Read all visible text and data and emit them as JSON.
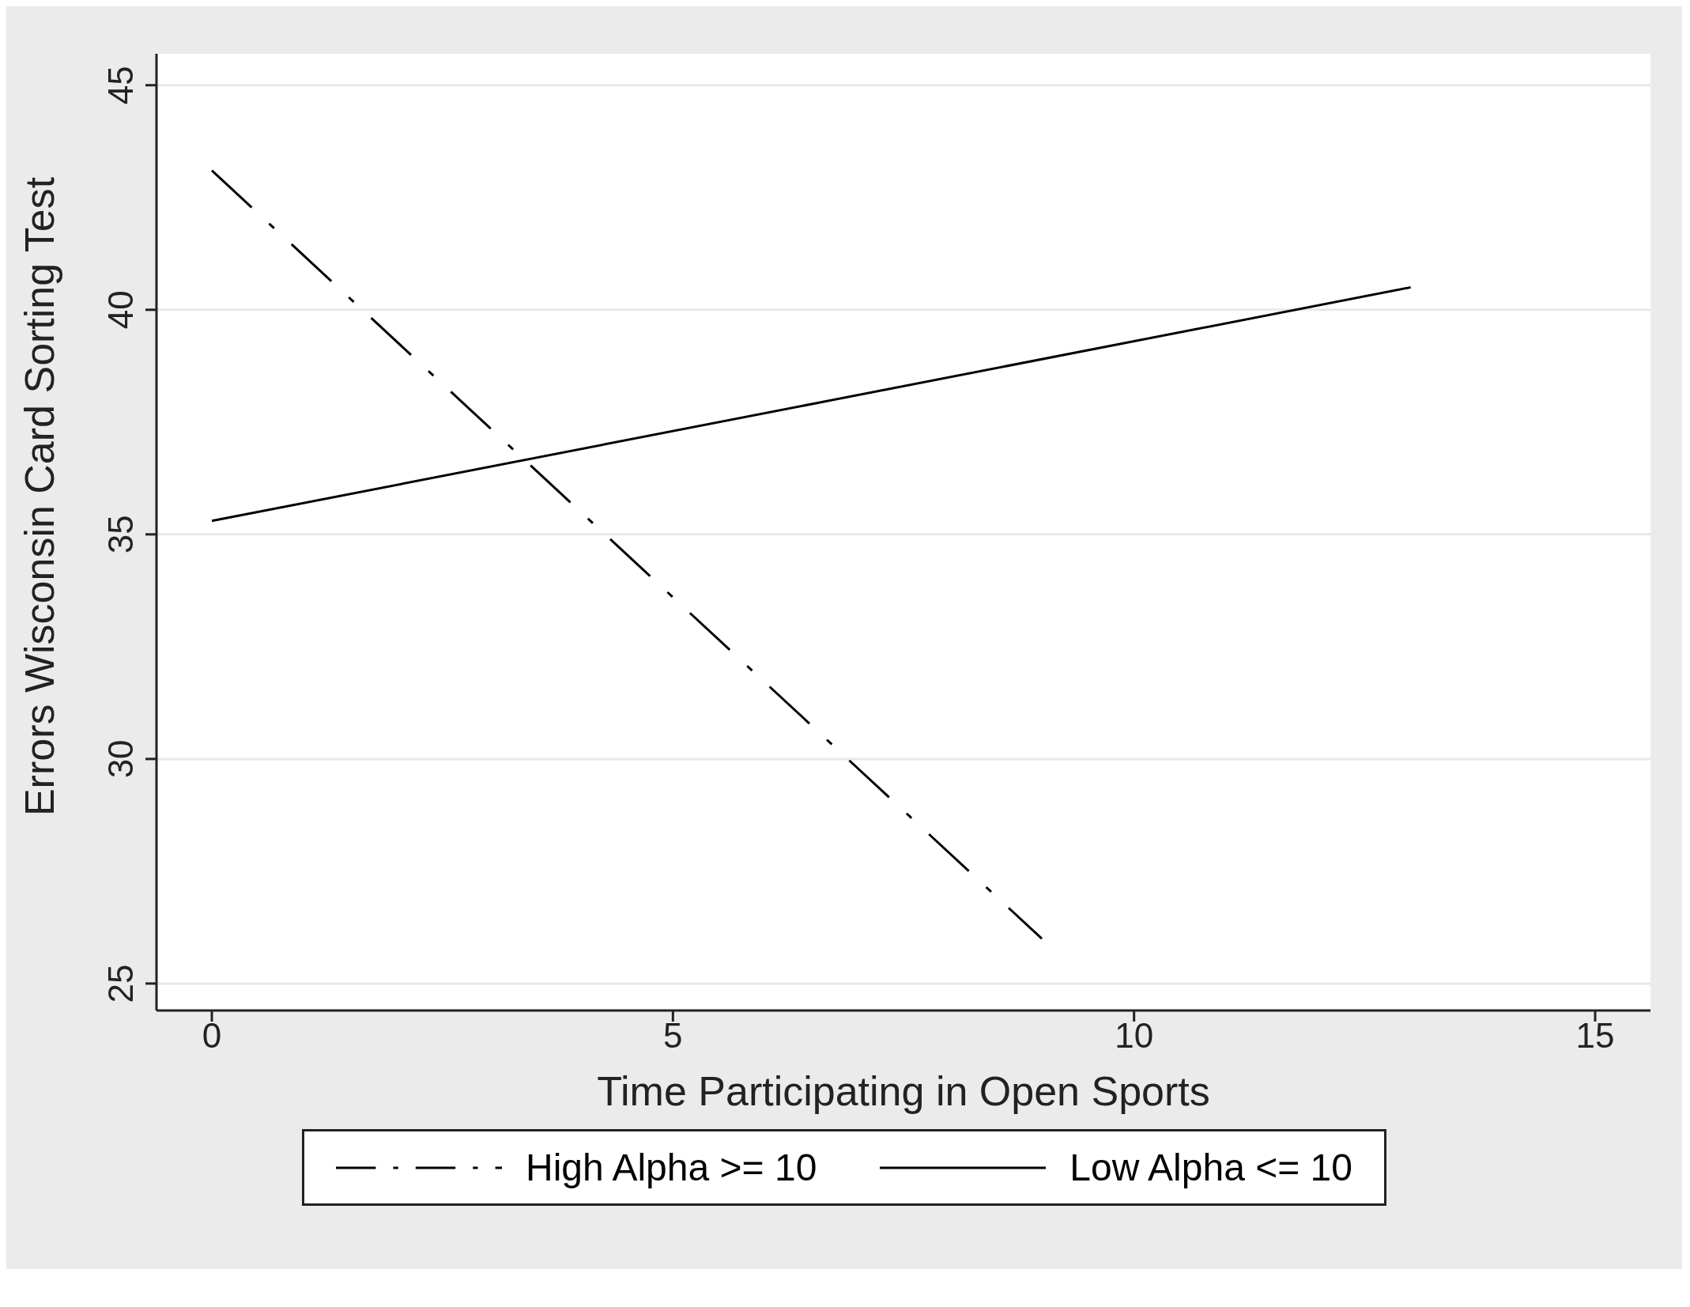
{
  "chart_data": {
    "type": "line",
    "xlabel": "Time Participating in Open Sports",
    "ylabel": "Errors Wisconsin Card Sorting Test",
    "series": [
      {
        "name": "High Alpha >=  10",
        "color": "#000000",
        "line_style": "dashed",
        "x": [
          0,
          9
        ],
        "values": [
          43.1,
          26
        ]
      },
      {
        "name": "Low Alpha <=  10",
        "color": "#000000",
        "line_style": "solid",
        "x": [
          0,
          13
        ],
        "values": [
          35.3,
          40.5
        ]
      }
    ],
    "xlim": [
      -0.6,
      15.6
    ],
    "xticks": [
      0,
      5,
      10,
      15
    ],
    "ylim": [
      24.4,
      45.7
    ],
    "yticks": [
      25,
      30,
      35,
      40,
      45
    ],
    "grid": "y",
    "legend": "bottom",
    "marker": "none"
  }
}
